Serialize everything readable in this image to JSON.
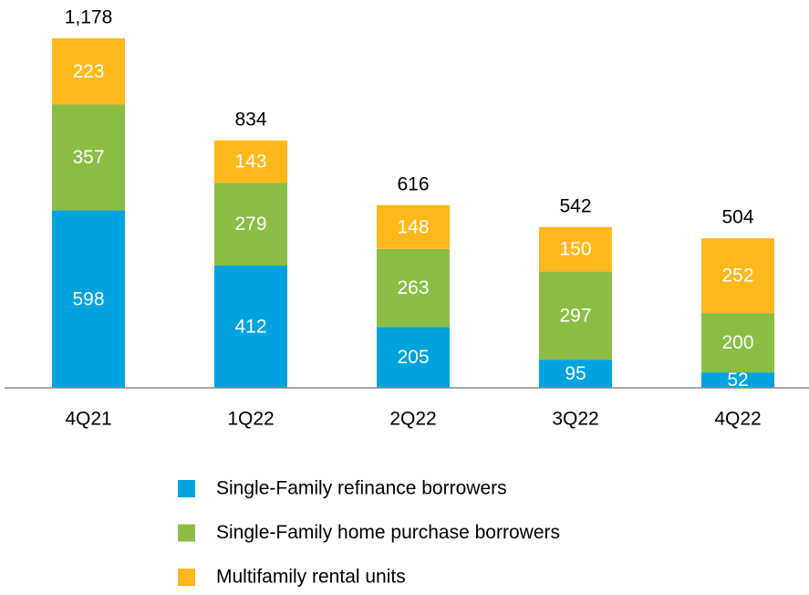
{
  "chart_data": {
    "type": "stacked_bar",
    "categories": [
      "4Q21",
      "1Q22",
      "2Q22",
      "3Q22",
      "4Q22"
    ],
    "series": [
      {
        "name": "Single-Family refinance borrowers",
        "color": "#00a3e0",
        "values": [
          598,
          412,
          205,
          95,
          52
        ]
      },
      {
        "name": "Single-Family home purchase borrowers",
        "color": "#8bbd45",
        "values": [
          357,
          279,
          263,
          297,
          200
        ]
      },
      {
        "name": "Multifamily rental units",
        "color": "#ffb81c",
        "values": [
          223,
          143,
          148,
          150,
          252
        ]
      }
    ],
    "totals": {
      "values": [
        1178,
        834,
        616,
        542,
        504
      ],
      "value_labels": [
        "1,178",
        "834",
        "616",
        "542",
        "504"
      ]
    },
    "legend": "bottom"
  }
}
